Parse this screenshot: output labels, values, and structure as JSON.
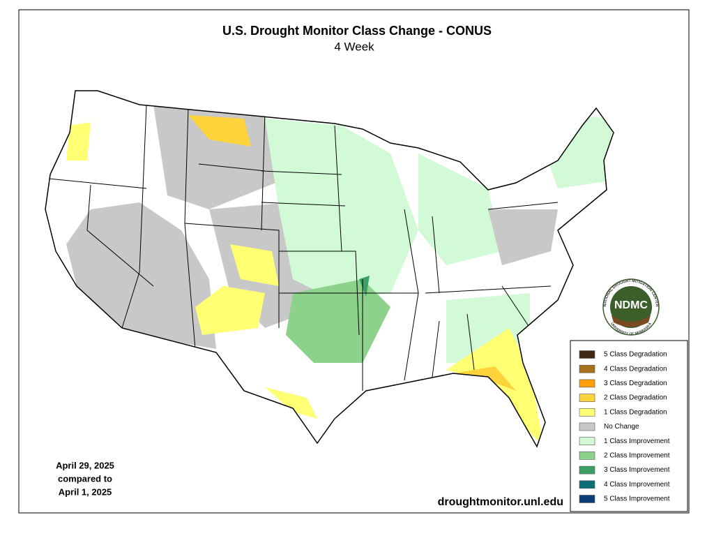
{
  "header": {
    "title": "U.S. Drought Monitor Class Change - CONUS",
    "subtitle": "4 Week"
  },
  "dates": [
    "April 29, 2025",
    "compared to",
    "April 1, 2025"
  ],
  "source": "droughtmonitor.unl.edu",
  "logo": {
    "name": "NDMC",
    "ring_top": "NATIONAL DROUGHT MITIGATION CENTER",
    "ring_bottom": "UNIVERSITY OF NEBRASKA"
  },
  "legend": [
    {
      "label": "5 Class Degradation",
      "color": "#3d2914"
    },
    {
      "label": "4 Class Degradation",
      "color": "#a6701e"
    },
    {
      "label": "3 Class Degradation",
      "color": "#ff9e0a"
    },
    {
      "label": "2 Class Degradation",
      "color": "#ffd33c"
    },
    {
      "label": "1 Class Degradation",
      "color": "#ffff73"
    },
    {
      "label": "No Change",
      "color": "#c8c8c8"
    },
    {
      "label": "1 Class Improvement",
      "color": "#d2fad7"
    },
    {
      "label": "2 Class Improvement",
      "color": "#8cd28c"
    },
    {
      "label": "3 Class Improvement",
      "color": "#3ca064"
    },
    {
      "label": "4 Class Improvement",
      "color": "#0a6e78"
    },
    {
      "label": "5 Class Improvement",
      "color": "#0a3c78"
    }
  ]
}
